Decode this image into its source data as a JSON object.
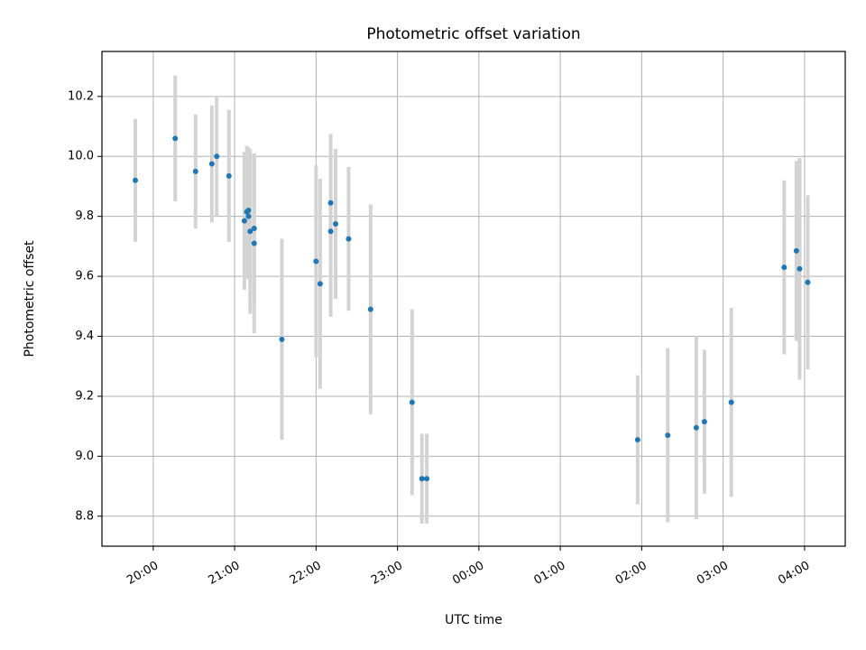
{
  "chart_data": {
    "type": "scatter",
    "title": "Photometric offset variation",
    "xlabel": "UTC time",
    "ylabel": "Photometric offset",
    "x_unit": "UTC time (hours after 00:00 of the evening day; values above 24 are the next day)",
    "xlim": [
      19.37,
      28.5
    ],
    "ylim": [
      8.7,
      10.35
    ],
    "x_ticks": [
      {
        "value": 20,
        "label": "20:00"
      },
      {
        "value": 21,
        "label": "21:00"
      },
      {
        "value": 22,
        "label": "22:00"
      },
      {
        "value": 23,
        "label": "23:00"
      },
      {
        "value": 24,
        "label": "00:00"
      },
      {
        "value": 25,
        "label": "01:00"
      },
      {
        "value": 26,
        "label": "02:00"
      },
      {
        "value": 27,
        "label": "03:00"
      },
      {
        "value": 28,
        "label": "04:00"
      }
    ],
    "y_ticks": [
      {
        "value": 8.8,
        "label": "8.8"
      },
      {
        "value": 9.0,
        "label": "9.0"
      },
      {
        "value": 9.2,
        "label": "9.2"
      },
      {
        "value": 9.4,
        "label": "9.4"
      },
      {
        "value": 9.6,
        "label": "9.6"
      },
      {
        "value": 9.8,
        "label": "9.8"
      },
      {
        "value": 10.0,
        "label": "10.0"
      },
      {
        "value": 10.2,
        "label": "10.2"
      }
    ],
    "grid": true,
    "marker_color": "#1f77b4",
    "errorbar_color": "#d3d3d3",
    "points": [
      {
        "x": 19.78,
        "y": 9.92,
        "err": 0.205
      },
      {
        "x": 20.27,
        "y": 10.06,
        "err": 0.21
      },
      {
        "x": 20.52,
        "y": 9.95,
        "err": 0.19
      },
      {
        "x": 20.72,
        "y": 9.975,
        "err": 0.195
      },
      {
        "x": 20.78,
        "y": 10.0,
        "err": 0.2
      },
      {
        "x": 20.93,
        "y": 9.935,
        "err": 0.22
      },
      {
        "x": 21.12,
        "y": 9.785,
        "err": 0.23
      },
      {
        "x": 21.15,
        "y": 9.815,
        "err": 0.22
      },
      {
        "x": 21.17,
        "y": 9.82,
        "err": 0.21
      },
      {
        "x": 21.17,
        "y": 9.8,
        "err": 0.21
      },
      {
        "x": 21.19,
        "y": 9.75,
        "err": 0.275
      },
      {
        "x": 21.24,
        "y": 9.71,
        "err": 0.3
      },
      {
        "x": 21.24,
        "y": 9.76,
        "err": 0.245
      },
      {
        "x": 21.58,
        "y": 9.39,
        "err": 0.335
      },
      {
        "x": 22.0,
        "y": 9.65,
        "err": 0.32
      },
      {
        "x": 22.05,
        "y": 9.575,
        "err": 0.35
      },
      {
        "x": 22.18,
        "y": 9.845,
        "err": 0.23
      },
      {
        "x": 22.18,
        "y": 9.75,
        "err": 0.285
      },
      {
        "x": 22.24,
        "y": 9.775,
        "err": 0.25
      },
      {
        "x": 22.4,
        "y": 9.725,
        "err": 0.24
      },
      {
        "x": 22.67,
        "y": 9.49,
        "err": 0.35
      },
      {
        "x": 23.18,
        "y": 9.18,
        "err": 0.31
      },
      {
        "x": 23.3,
        "y": 8.925,
        "err": 0.15
      },
      {
        "x": 23.36,
        "y": 8.925,
        "err": 0.15
      },
      {
        "x": 25.95,
        "y": 9.055,
        "err": 0.215
      },
      {
        "x": 26.32,
        "y": 9.07,
        "err": 0.29
      },
      {
        "x": 26.67,
        "y": 9.095,
        "err": 0.305
      },
      {
        "x": 26.77,
        "y": 9.115,
        "err": 0.24
      },
      {
        "x": 27.1,
        "y": 9.18,
        "err": 0.315
      },
      {
        "x": 27.75,
        "y": 9.63,
        "err": 0.29
      },
      {
        "x": 27.9,
        "y": 9.685,
        "err": 0.3
      },
      {
        "x": 27.94,
        "y": 9.625,
        "err": 0.37
      },
      {
        "x": 28.04,
        "y": 9.58,
        "err": 0.29
      }
    ]
  }
}
